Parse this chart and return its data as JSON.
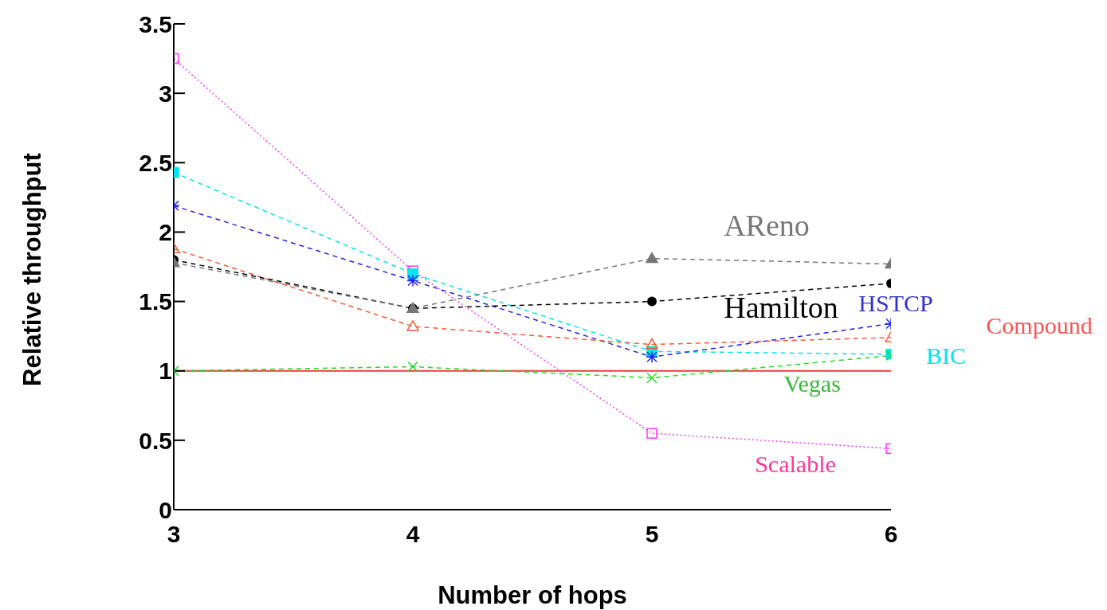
{
  "chart_data": {
    "type": "line",
    "xlabel": "Number of hops",
    "ylabel": "Relative throughput",
    "x": [
      3,
      4,
      5,
      6
    ],
    "xlim": [
      3,
      6
    ],
    "xticks": [
      3,
      4,
      5,
      6
    ],
    "ylim": [
      0,
      3.5
    ],
    "yticks": [
      0,
      0.5,
      1,
      1.5,
      2,
      2.5,
      3,
      3.5
    ],
    "ref_lines": [
      {
        "axis": "y",
        "value": 1,
        "color": "#e8403c",
        "line_style": "solid"
      }
    ],
    "series": [
      {
        "name": "Scalable",
        "color": "#ff33ff",
        "values": [
          3.25,
          1.72,
          0.55,
          0.44
        ],
        "marker": "square",
        "line_style": "dotted"
      },
      {
        "name": "BIC",
        "color": "#00e5ee",
        "values": [
          2.43,
          1.7,
          1.14,
          1.12
        ],
        "marker": "square",
        "line_style": "dashed"
      },
      {
        "name": "HSTCP",
        "color": "#2222ee",
        "values": [
          2.19,
          1.65,
          1.1,
          1.34
        ],
        "marker": "cross",
        "line_style": "dashed"
      },
      {
        "name": "Compound",
        "color": "#ff5533",
        "values": [
          1.88,
          1.32,
          1.19,
          1.24
        ],
        "marker": "triangle",
        "line_style": "dashed"
      },
      {
        "name": "Hamilton",
        "color": "#000000",
        "values": [
          1.8,
          1.45,
          1.5,
          1.63
        ],
        "marker": "circle",
        "line_style": "dashed"
      },
      {
        "name": "AReno",
        "color": "#777777",
        "values": [
          1.78,
          1.45,
          1.81,
          1.77
        ],
        "marker": "triangle",
        "line_style": "dashed"
      },
      {
        "name": "Vegas",
        "color": "#22dd22",
        "values": [
          1.0,
          1.03,
          0.95,
          1.11
        ],
        "marker": "cross",
        "line_style": "dashed"
      }
    ]
  }
}
